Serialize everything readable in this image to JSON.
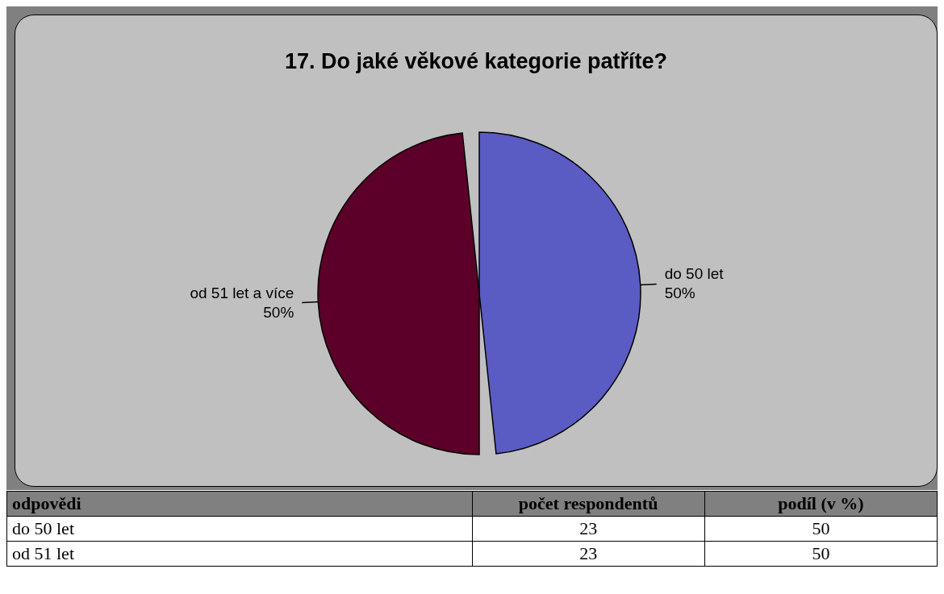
{
  "chart_data": {
    "type": "pie",
    "title": "17. Do jaké věkové kategorie patříte?",
    "categories": [
      "do 50 let",
      "od 51 let a více"
    ],
    "values": [
      50,
      50
    ],
    "colors": [
      "#5b5bc4",
      "#5c0029"
    ],
    "value_labels": [
      "50%",
      "50%"
    ],
    "annotations": [
      "odpovědi",
      "počet respondentů",
      "podíl (v %)",
      "do 50 let",
      "23",
      "50",
      "od 51 let",
      "23",
      "50"
    ]
  }
}
